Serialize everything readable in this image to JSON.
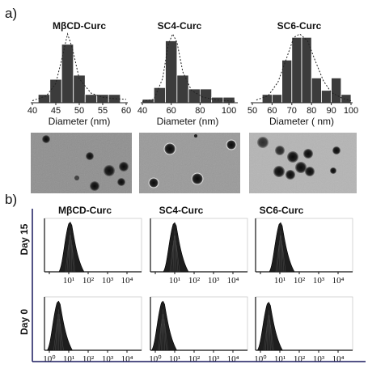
{
  "panel_a": {
    "label": "a)"
  },
  "panel_b": {
    "label": "b)"
  },
  "chart_data": [
    {
      "type": "bar",
      "title": "MβCD-Curc",
      "xlabel": "Diameter (nm)",
      "x_ticks": [
        "40",
        "45",
        "50",
        "55",
        "60"
      ],
      "xlim": [
        40,
        60
      ],
      "bin_width": 2.5,
      "x": [
        42.5,
        45,
        47.5,
        50,
        52.5,
        55,
        57.5
      ],
      "values": [
        0.12,
        0.34,
        0.85,
        0.4,
        0.12,
        0.12,
        0.12
      ],
      "fit_curve": "dotted-gaussian",
      "fit_points": [
        [
          40,
          0.03
        ],
        [
          43,
          0.1
        ],
        [
          45,
          0.28
        ],
        [
          46.5,
          0.7
        ],
        [
          47.5,
          1.0
        ],
        [
          48.5,
          0.8
        ],
        [
          50,
          0.35
        ],
        [
          52.5,
          0.14
        ],
        [
          55,
          0.08
        ],
        [
          57.5,
          0.06
        ],
        [
          60,
          0.05
        ]
      ]
    },
    {
      "type": "bar",
      "title": "SC4-Curc",
      "xlabel": "Diameter (nm)",
      "x_ticks": [
        "40",
        "60",
        "80",
        "100"
      ],
      "xlim": [
        40,
        105
      ],
      "bin_width": 8,
      "x": [
        44,
        52,
        60,
        68,
        76,
        84,
        92,
        100
      ],
      "values": [
        0.05,
        0.22,
        0.9,
        0.4,
        0.2,
        0.2,
        0.08,
        0.08
      ],
      "fit_curve": "dotted-gaussian",
      "fit_points": [
        [
          40,
          0.02
        ],
        [
          48,
          0.05
        ],
        [
          54,
          0.35
        ],
        [
          58,
          0.85
        ],
        [
          61,
          1.0
        ],
        [
          64,
          0.88
        ],
        [
          68,
          0.45
        ],
        [
          74,
          0.18
        ],
        [
          82,
          0.08
        ],
        [
          92,
          0.04
        ],
        [
          104,
          0.02
        ]
      ]
    },
    {
      "type": "bar",
      "title": "SC6-Curc",
      "xlabel": "Diameter ( nm)",
      "x_ticks": [
        "50",
        "60",
        "70",
        "80",
        "90",
        "100"
      ],
      "xlim": [
        50,
        100
      ],
      "bin_width": 5,
      "x": [
        57.5,
        62.5,
        67.5,
        72.5,
        77.5,
        82.5,
        87.5,
        92.5,
        97.5
      ],
      "values": [
        0.12,
        0.12,
        0.62,
        0.95,
        0.95,
        0.36,
        0.18,
        0.36,
        0.12
      ],
      "fit_curve": "dotted-gaussian",
      "fit_points": [
        [
          52,
          0.04
        ],
        [
          58,
          0.1
        ],
        [
          63,
          0.3
        ],
        [
          67,
          0.62
        ],
        [
          71,
          0.95
        ],
        [
          74,
          1.0
        ],
        [
          78,
          0.9
        ],
        [
          82,
          0.6
        ],
        [
          86,
          0.32
        ],
        [
          90,
          0.15
        ],
        [
          96,
          0.06
        ],
        [
          100,
          0.03
        ]
      ]
    },
    {
      "type": "area",
      "title": "MβCD-Curc",
      "row_label": "Day 15",
      "x_scale": "log",
      "x_ticks": [
        "10¹",
        "10²",
        "10³",
        "10⁴"
      ],
      "xlim": [
        1,
        10000
      ],
      "peak_x": 12,
      "peak_height": 0.93
    },
    {
      "type": "area",
      "title": "SC4-Curc",
      "row_label": "Day 15",
      "x_scale": "log",
      "x_ticks": [
        "10¹",
        "10²",
        "10³",
        "10⁴"
      ],
      "xlim": [
        1,
        10000
      ],
      "peak_x": 10,
      "peak_height": 0.92
    },
    {
      "type": "area",
      "title": "SC6-Curc",
      "row_label": "Day 15",
      "x_scale": "log",
      "x_ticks": [
        "10¹",
        "10²",
        "10³",
        "10⁴"
      ],
      "xlim": [
        1,
        10000
      ],
      "peak_x": 11,
      "peak_height": 0.92
    },
    {
      "type": "area",
      "title": "MβCD-Curc",
      "row_label": "Day 0",
      "x_scale": "log",
      "x_ticks": [
        "10⁰",
        "10¹",
        "10²",
        "10³",
        "10⁴"
      ],
      "xlim": [
        1,
        10000
      ],
      "peak_x": 3,
      "peak_height": 0.92
    },
    {
      "type": "area",
      "title": "SC4-Curc",
      "row_label": "Day 0",
      "x_scale": "log",
      "x_ticks": [
        "10⁰",
        "10¹",
        "10²",
        "10³",
        "10⁴"
      ],
      "xlim": [
        1,
        10000
      ],
      "peak_x": 2.5,
      "peak_height": 0.92
    },
    {
      "type": "area",
      "title": "SC6-Curc",
      "row_label": "Day 0",
      "x_scale": "log",
      "x_ticks": [
        "10⁰",
        "10¹",
        "10²",
        "10³",
        "10⁴"
      ],
      "xlim": [
        1,
        10000
      ],
      "peak_x": 2.7,
      "peak_height": 0.9
    }
  ],
  "colors": {
    "bar": "#3c3c3c",
    "peak": "#1e1e1e",
    "axis": "#1a1a5e",
    "text": "#111111"
  },
  "images": [
    {
      "name": "tem-image-mbcd",
      "description_icon": "tem-micrograph-icon"
    },
    {
      "name": "tem-image-sc4",
      "description_icon": "tem-micrograph-icon"
    },
    {
      "name": "tem-image-sc6",
      "description_icon": "tem-micrograph-icon"
    }
  ]
}
